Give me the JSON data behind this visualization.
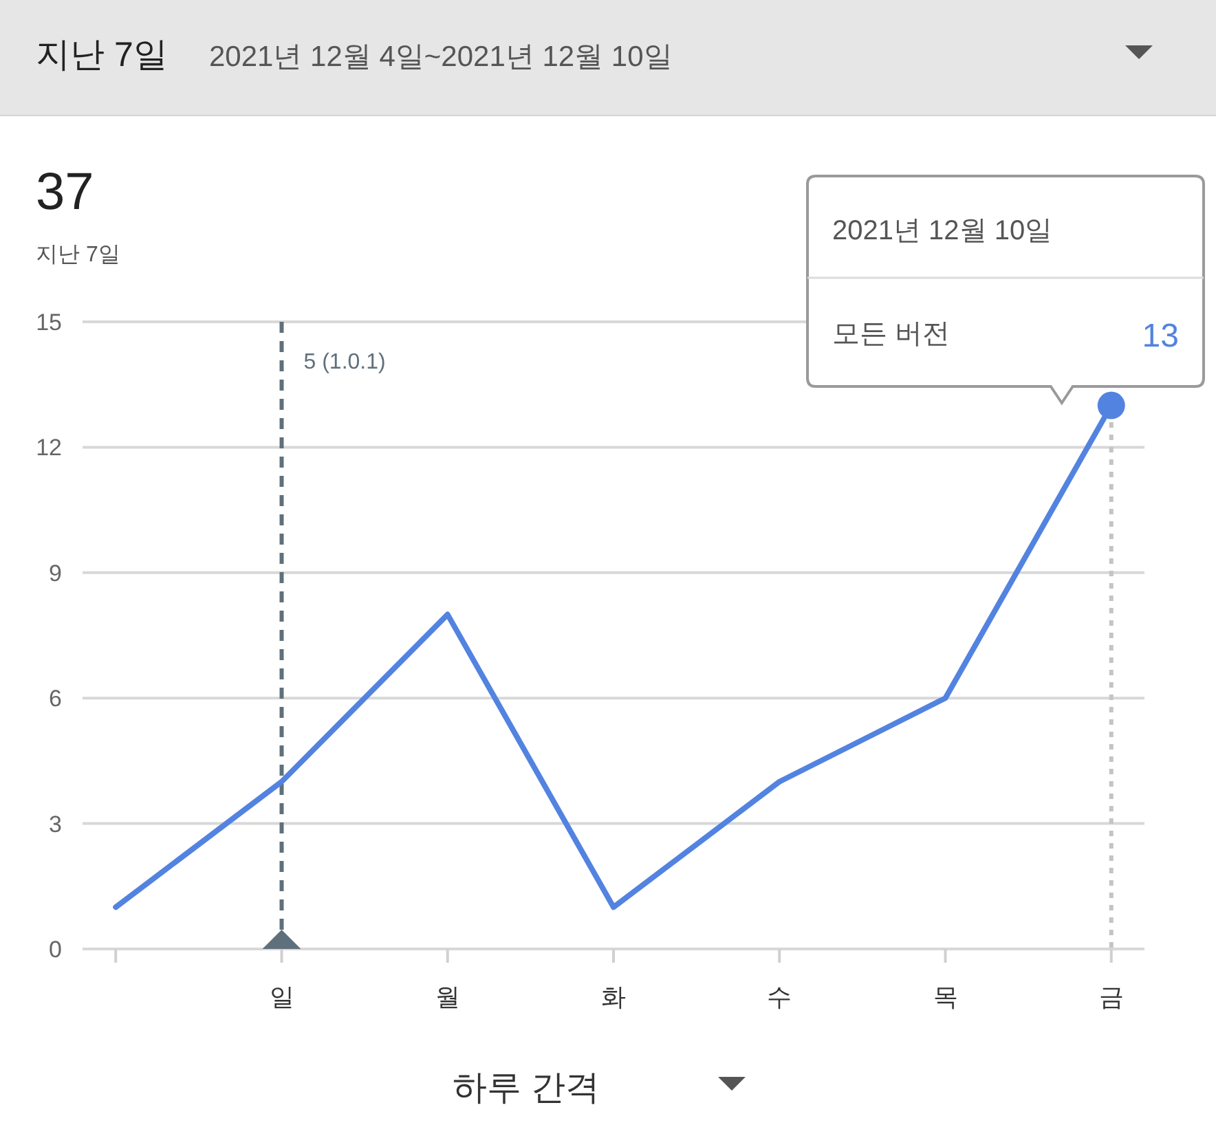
{
  "chart_data": {
    "type": "line",
    "title": "지난 7일",
    "subtitle": "2021년 12월 4일~2021년 12월 10일",
    "categories": [
      null,
      "일",
      "월",
      "화",
      "수",
      "목",
      "금"
    ],
    "series": [
      {
        "color": "#5383e0",
        "values": [
          1,
          4,
          8,
          1,
          4,
          6,
          13
        ]
      }
    ],
    "ylim": [
      0,
      15
    ],
    "yticks": [
      0,
      3,
      6,
      9,
      12,
      15
    ],
    "grid": "y",
    "marker": "none",
    "line_style": "solid",
    "ref_lines": [
      {
        "axis": "x",
        "value": "일",
        "label": "5 (1.0.1)",
        "color": "#5f707c",
        "line_style": "dashed"
      },
      {
        "axis": "x",
        "value": "금",
        "color": "#c4c4c4",
        "line_style": "dotted"
      }
    ],
    "annotations": [
      "37",
      "지난 7일",
      "2021년 12월 10일",
      "모든 버전",
      {
        "text": "13",
        "x": "금",
        "y": 13
      },
      "하루 간격"
    ]
  }
}
